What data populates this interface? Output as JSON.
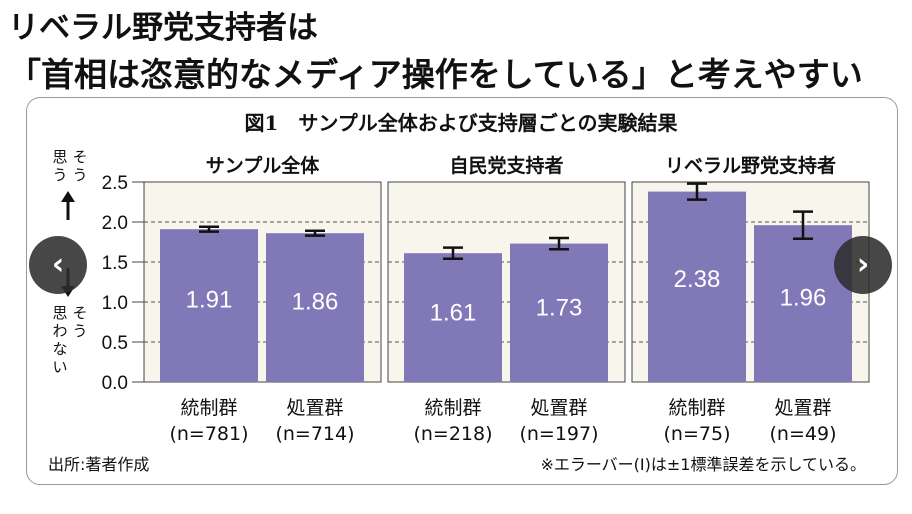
{
  "article": {
    "headline_line1": "リベラル野党支持者は",
    "headline_line2": "「首相は恣意的なメディア操作をしている」と考えやすい"
  },
  "figure": {
    "title": "図1　サンプル全体および支持層ごとの実験結果",
    "source": "出所:著者作成",
    "note": "※エラーバー(I)は±1標準誤差を示している。",
    "ylabel_top": [
      "そ",
      "う",
      "思",
      "う"
    ],
    "ylabel_bottom": [
      "そ",
      "う",
      "思",
      "わ",
      "な",
      "い"
    ]
  },
  "navigation": {
    "prev_icon": "chevron-left-icon",
    "next_icon": "chevron-right-icon"
  },
  "colors": {
    "bar": "#8178b8",
    "panel_bg": "#f7f5ec",
    "text": "#111111"
  },
  "chart_data": {
    "type": "bar",
    "ylim": [
      0,
      2.5
    ],
    "yticks": [
      "0.0",
      "0.5",
      "1.0",
      "1.5",
      "2.0",
      "2.5"
    ],
    "grid": true,
    "panels": [
      {
        "title": "サンプル全体",
        "categories": [
          "統制群",
          "処置群"
        ],
        "n_labels": [
          "(n=781)",
          "(n=714)"
        ],
        "values": [
          1.91,
          1.86
        ],
        "value_labels": [
          "1.91",
          "1.86"
        ],
        "se": [
          0.03,
          0.03
        ]
      },
      {
        "title": "自民党支持者",
        "categories": [
          "統制群",
          "処置群"
        ],
        "n_labels": [
          "(n=218)",
          "(n=197)"
        ],
        "values": [
          1.61,
          1.73
        ],
        "value_labels": [
          "1.61",
          "1.73"
        ],
        "se": [
          0.07,
          0.07
        ]
      },
      {
        "title": "リベラル野党支持者",
        "categories": [
          "統制群",
          "処置群"
        ],
        "n_labels": [
          "(n=75)",
          "(n=49)"
        ],
        "values": [
          2.38,
          1.96
        ],
        "value_labels": [
          "2.38",
          "1.96"
        ],
        "se": [
          0.1,
          0.17
        ]
      }
    ]
  }
}
